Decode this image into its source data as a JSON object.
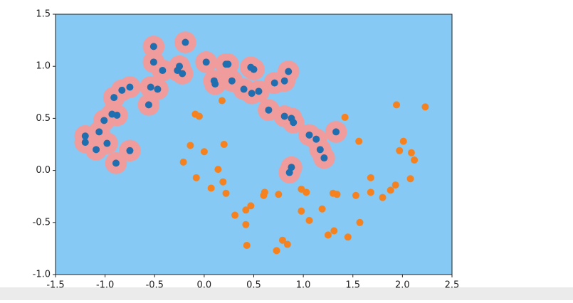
{
  "chart_data": {
    "type": "scatter",
    "xlim": [
      -1.5,
      2.5
    ],
    "ylim": [
      -1.0,
      1.5
    ],
    "xticks": [
      -1.5,
      {
        "value": -1.0,
        "label": "-1.0"
      },
      -0.5,
      {
        "value": 0.0,
        "label": "0.0"
      },
      0.5,
      {
        "value": 1.0,
        "label": "1.0"
      },
      1.5,
      {
        "value": 2.0,
        "label": "2.0"
      },
      2.5
    ],
    "yticks": [
      {
        "value": -1.0,
        "label": "-1.0"
      },
      -0.5,
      {
        "value": 0.0,
        "label": "0.0"
      },
      0.5,
      {
        "value": 1.0,
        "label": "1.0"
      },
      1.5
    ],
    "background_color": "#85c9f4",
    "region_color": "#f09c9c",
    "series": [
      {
        "color": "#1f6fb0",
        "x": [
          -0.19,
          -0.51,
          -0.51,
          -0.42,
          -0.27,
          -0.22,
          -0.25,
          -0.54,
          -0.47,
          -0.56,
          -0.75,
          -0.83,
          -0.91,
          -0.93,
          -0.88,
          -1.01,
          -1.06,
          -1.2,
          -1.2,
          -0.98,
          -1.09,
          -0.75,
          -0.89,
          0.02,
          0.1,
          0.11,
          0.22,
          0.24,
          0.28,
          0.4,
          0.47,
          0.5,
          0.48,
          0.55,
          0.71,
          0.81,
          0.85,
          0.65,
          0.81,
          0.88,
          0.9,
          1.06,
          1.13,
          1.17,
          1.21,
          1.33,
          0.88,
          0.86
        ],
        "values": [
          1.23,
          1.19,
          1.04,
          0.96,
          0.96,
          0.93,
          1.0,
          0.8,
          0.78,
          0.63,
          0.8,
          0.77,
          0.7,
          0.54,
          0.53,
          0.48,
          0.37,
          0.33,
          0.27,
          0.26,
          0.2,
          0.19,
          0.07,
          1.04,
          0.86,
          0.83,
          1.02,
          1.02,
          0.86,
          0.78,
          0.99,
          0.97,
          0.74,
          0.76,
          0.84,
          0.86,
          0.95,
          0.58,
          0.52,
          0.5,
          0.46,
          0.34,
          0.3,
          0.2,
          0.12,
          0.37,
          0.03,
          -0.02
        ]
      },
      {
        "color": "#f5821f",
        "x": [
          -0.09,
          -0.05,
          0.18,
          -0.14,
          0.0,
          0.2,
          -0.21,
          0.14,
          -0.08,
          0.07,
          0.19,
          0.22,
          0.31,
          0.42,
          0.47,
          0.42,
          0.43,
          0.6,
          0.61,
          0.75,
          0.73,
          0.79,
          0.84,
          0.98,
          1.03,
          0.98,
          1.06,
          1.19,
          1.3,
          1.34,
          1.25,
          1.31,
          1.45,
          1.42,
          1.56,
          1.53,
          1.68,
          1.57,
          1.68,
          1.8,
          1.88,
          1.93,
          1.94,
          2.01,
          1.97,
          2.09,
          2.12,
          2.08,
          2.23
        ],
        "values": [
          0.54,
          0.52,
          0.67,
          0.24,
          0.18,
          0.25,
          0.08,
          0.01,
          -0.07,
          -0.17,
          -0.11,
          -0.22,
          -0.43,
          -0.38,
          -0.34,
          -0.52,
          -0.72,
          -0.24,
          -0.21,
          -0.23,
          -0.77,
          -0.67,
          -0.71,
          -0.18,
          -0.21,
          -0.39,
          -0.48,
          -0.37,
          -0.22,
          -0.23,
          -0.62,
          -0.58,
          -0.64,
          0.51,
          0.28,
          -0.24,
          -0.21,
          -0.5,
          -0.07,
          -0.26,
          -0.19,
          -0.14,
          0.63,
          0.28,
          0.19,
          0.17,
          0.1,
          -0.08,
          0.61
        ]
      }
    ]
  }
}
